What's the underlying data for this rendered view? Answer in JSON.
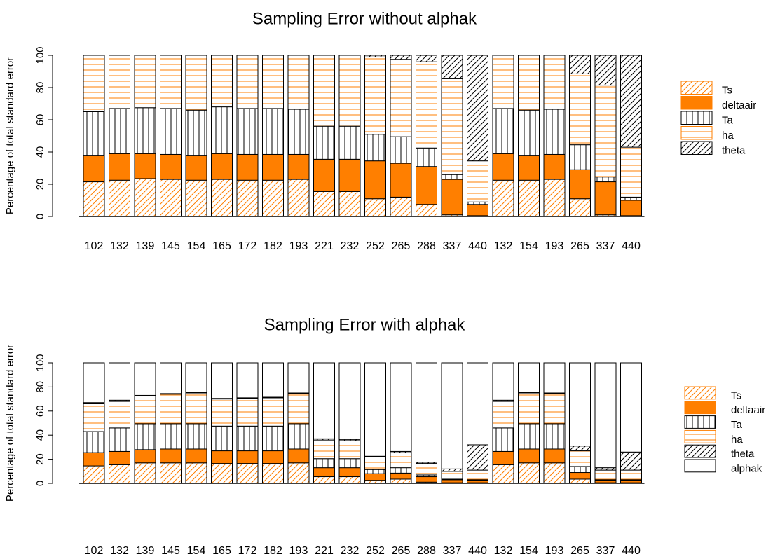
{
  "chart_data": [
    {
      "type": "bar",
      "stacked": true,
      "title": "Sampling Error without alphak",
      "ylabel": "Percentage of total standard error",
      "categories": [
        "102",
        "132",
        "139",
        "145",
        "154",
        "165",
        "172",
        "182",
        "193",
        "221",
        "232",
        "252",
        "265",
        "288",
        "337",
        "440",
        "132",
        "154",
        "193",
        "265",
        "337",
        "440"
      ],
      "series": [
        {
          "name": "Ts",
          "color": "#ff7f00",
          "fill_pattern": "diagonal",
          "values": [
            21.5,
            22.5,
            23.5,
            23,
            22.5,
            23,
            22.5,
            22.5,
            23,
            15.5,
            15.5,
            11,
            12,
            7.5,
            1,
            0.5,
            22.5,
            22.5,
            23,
            11,
            1,
            0.5
          ]
        },
        {
          "name": "deltaair",
          "color": "#ff7f00",
          "fill_pattern": "solid",
          "values": [
            16.5,
            16.5,
            15.5,
            15.5,
            15.5,
            16,
            16,
            16,
            15.5,
            20,
            20,
            23.5,
            21,
            23.5,
            22,
            7,
            16.5,
            15.5,
            15.5,
            18,
            20.5,
            9.5
          ]
        },
        {
          "name": "Ta",
          "color": "#000000",
          "fill_pattern": "vertical",
          "values": [
            27,
            28,
            28.5,
            28.5,
            28,
            29,
            28.5,
            28.5,
            28,
            20.5,
            20.5,
            16.5,
            16.5,
            11.5,
            3,
            1.5,
            28,
            28,
            28,
            15.5,
            3,
            2
          ]
        },
        {
          "name": "ha",
          "color": "#ff7f00",
          "fill_pattern": "horizontal",
          "values": [
            35,
            33,
            32.5,
            33,
            34,
            32,
            33,
            33,
            33.5,
            44,
            44,
            48,
            48,
            53.5,
            59.5,
            25.5,
            33,
            34,
            33.5,
            44,
            57,
            31
          ]
        },
        {
          "name": "theta",
          "color": "#000000",
          "fill_pattern": "diagonal",
          "values": [
            0,
            0,
            0,
            0,
            0,
            0,
            0,
            0,
            0,
            0,
            0,
            1,
            2.5,
            4,
            14.5,
            65.5,
            0,
            0,
            0,
            11.5,
            18.5,
            57
          ]
        }
      ],
      "ylim": [
        0,
        100
      ],
      "yticks": [
        0,
        20,
        40,
        60,
        80,
        100
      ],
      "legend": "right"
    },
    {
      "type": "bar",
      "stacked": true,
      "title": "Sampling Error with alphak",
      "ylabel": "Percentage of total standard error",
      "categories": [
        "102",
        "132",
        "139",
        "145",
        "154",
        "165",
        "172",
        "182",
        "193",
        "221",
        "232",
        "252",
        "265",
        "288",
        "337",
        "440",
        "132",
        "154",
        "193",
        "265",
        "337",
        "440"
      ],
      "series": [
        {
          "name": "Ts",
          "color": "#ff7f00",
          "fill_pattern": "diagonal",
          "values": [
            14.5,
            15.5,
            17,
            17,
            17,
            16.5,
            16.5,
            16.5,
            17,
            5.5,
            5.5,
            2.5,
            3.5,
            1,
            0.5,
            0.5,
            15.5,
            17,
            17,
            3.5,
            0.5,
            0.5
          ]
        },
        {
          "name": "deltaair",
          "color": "#ff7f00",
          "fill_pattern": "solid",
          "values": [
            11,
            11,
            11,
            11.5,
            11.5,
            10.5,
            10.5,
            10.5,
            11.5,
            7.5,
            7.5,
            5.5,
            5,
            4.5,
            2.5,
            2,
            11,
            11.5,
            11.5,
            5.5,
            2,
            2
          ]
        },
        {
          "name": "Ta",
          "color": "#000000",
          "fill_pattern": "vertical",
          "values": [
            17.5,
            19.5,
            21.5,
            21,
            21,
            20.5,
            20.5,
            20.5,
            21,
            7.5,
            7.5,
            3.5,
            4.5,
            1.5,
            0.5,
            0.5,
            19.5,
            21,
            21,
            5,
            0.5,
            0.5
          ]
        },
        {
          "name": "ha",
          "color": "#ff7f00",
          "fill_pattern": "horizontal",
          "values": [
            23,
            22,
            23,
            24.5,
            25.5,
            22.5,
            23,
            23.5,
            25,
            15.5,
            15,
            10.5,
            12.5,
            9.5,
            6.5,
            8,
            22,
            25.5,
            25,
            13,
            8,
            8
          ]
        },
        {
          "name": "theta",
          "color": "#000000",
          "fill_pattern": "diagonal",
          "values": [
            1,
            1,
            0.5,
            0.5,
            0.5,
            0.5,
            0.5,
            0.5,
            0.5,
            1,
            1,
            0.5,
            1,
            1,
            2,
            21,
            1,
            0.5,
            0.5,
            4,
            2,
            15
          ]
        },
        {
          "name": "alphak",
          "color": "#ffffff",
          "fill_pattern": "solid",
          "values": [
            33,
            31,
            27,
            25.5,
            24.5,
            29.5,
            29,
            28.5,
            25,
            63,
            63.5,
            77.5,
            73.5,
            82.5,
            88,
            68,
            31,
            24.5,
            25,
            69,
            87,
            74
          ]
        }
      ],
      "ylim": [
        0,
        100
      ],
      "yticks": [
        0,
        20,
        40,
        60,
        80,
        100
      ],
      "legend": "right"
    }
  ]
}
